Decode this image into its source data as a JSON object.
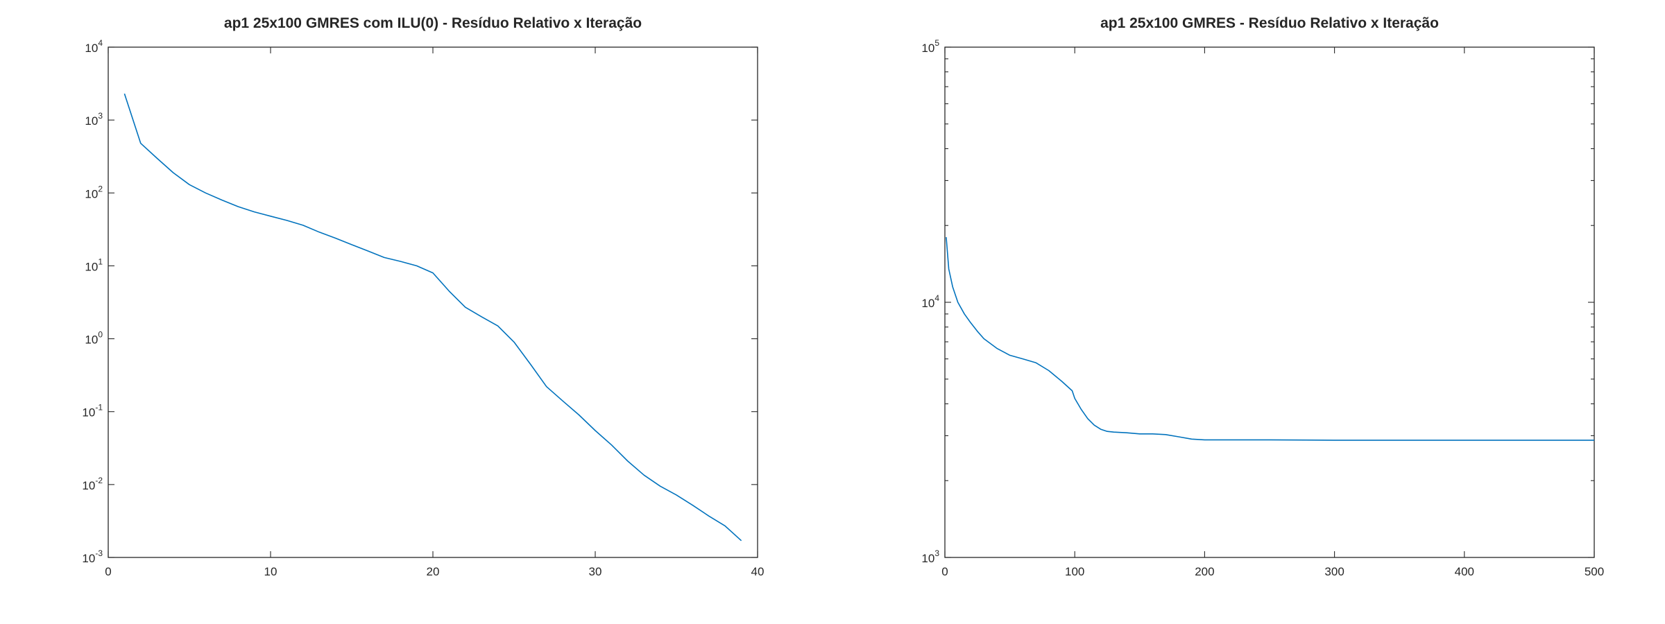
{
  "colors": {
    "series": "#0072bd",
    "axes": "#262626",
    "background": "#ffffff"
  },
  "chart_data": [
    {
      "type": "line",
      "title": "ap1 25x100 GMRES com ILU(0) - Resíduo Relativo x Iteração",
      "xlabel": "",
      "ylabel": "",
      "yscale": "log",
      "grid": false,
      "xlim": [
        0,
        40
      ],
      "ylim": [
        0.001,
        10000
      ],
      "xticks": [
        0,
        10,
        20,
        30,
        40
      ],
      "xtick_labels": [
        "0",
        "10",
        "20",
        "30",
        "40"
      ],
      "yticks": [
        0.001,
        0.01,
        0.1,
        1,
        10,
        100,
        1000,
        10000
      ],
      "ytick_labels": [
        {
          "base": "10",
          "exp": "-3"
        },
        {
          "base": "10",
          "exp": "-2"
        },
        {
          "base": "10",
          "exp": "-1"
        },
        {
          "base": "10",
          "exp": "0"
        },
        {
          "base": "10",
          "exp": "1"
        },
        {
          "base": "10",
          "exp": "2"
        },
        {
          "base": "10",
          "exp": "3"
        },
        {
          "base": "10",
          "exp": "4"
        }
      ],
      "series": [
        {
          "x": [
            1,
            2,
            3,
            4,
            5,
            6,
            7,
            8,
            9,
            10,
            11,
            12,
            13,
            14,
            15,
            16,
            17,
            18,
            19,
            20,
            21,
            22,
            23,
            24,
            25,
            26,
            27,
            28,
            29,
            30,
            31,
            32,
            33,
            34,
            35,
            36,
            37,
            38,
            39
          ],
          "y": [
            2300,
            480,
            300,
            190,
            130,
            100,
            80,
            65,
            55,
            48,
            42,
            36,
            29,
            24,
            19.5,
            16,
            13,
            11.5,
            10,
            8,
            4.5,
            2.7,
            2,
            1.5,
            0.9,
            0.45,
            0.22,
            0.14,
            0.09,
            0.055,
            0.035,
            0.021,
            0.0135,
            0.0095,
            0.0072,
            0.0052,
            0.0037,
            0.0027,
            0.0017
          ]
        }
      ]
    },
    {
      "type": "line",
      "title": "ap1 25x100 GMRES - Resíduo Relativo x Iteração",
      "xlabel": "",
      "ylabel": "",
      "yscale": "log",
      "grid": false,
      "xlim": [
        0,
        500
      ],
      "ylim": [
        1000,
        100000
      ],
      "xticks": [
        0,
        100,
        200,
        300,
        400,
        500
      ],
      "xtick_labels": [
        "0",
        "100",
        "200",
        "300",
        "400",
        "500"
      ],
      "yticks": [
        1000,
        10000,
        100000
      ],
      "ytick_labels": [
        {
          "base": "10",
          "exp": "3"
        },
        {
          "base": "10",
          "exp": "4"
        },
        {
          "base": "10",
          "exp": "5"
        }
      ],
      "minor_yticks": [
        2000,
        3000,
        4000,
        5000,
        6000,
        7000,
        8000,
        9000,
        20000,
        30000,
        40000,
        50000,
        60000,
        70000,
        80000,
        90000
      ],
      "series": [
        {
          "x": [
            1,
            3,
            6,
            10,
            15,
            20,
            25,
            30,
            40,
            50,
            60,
            70,
            80,
            90,
            98,
            100,
            105,
            110,
            115,
            120,
            125,
            130,
            140,
            150,
            160,
            170,
            180,
            190,
            200,
            250,
            300,
            350,
            400,
            450,
            500
          ],
          "y": [
            18000,
            13500,
            11500,
            10000,
            9000,
            8300,
            7700,
            7200,
            6600,
            6200,
            6000,
            5800,
            5400,
            4900,
            4500,
            4200,
            3800,
            3500,
            3300,
            3180,
            3120,
            3100,
            3080,
            3050,
            3050,
            3030,
            2970,
            2910,
            2890,
            2890,
            2880,
            2880,
            2880,
            2880,
            2880
          ]
        }
      ]
    }
  ]
}
